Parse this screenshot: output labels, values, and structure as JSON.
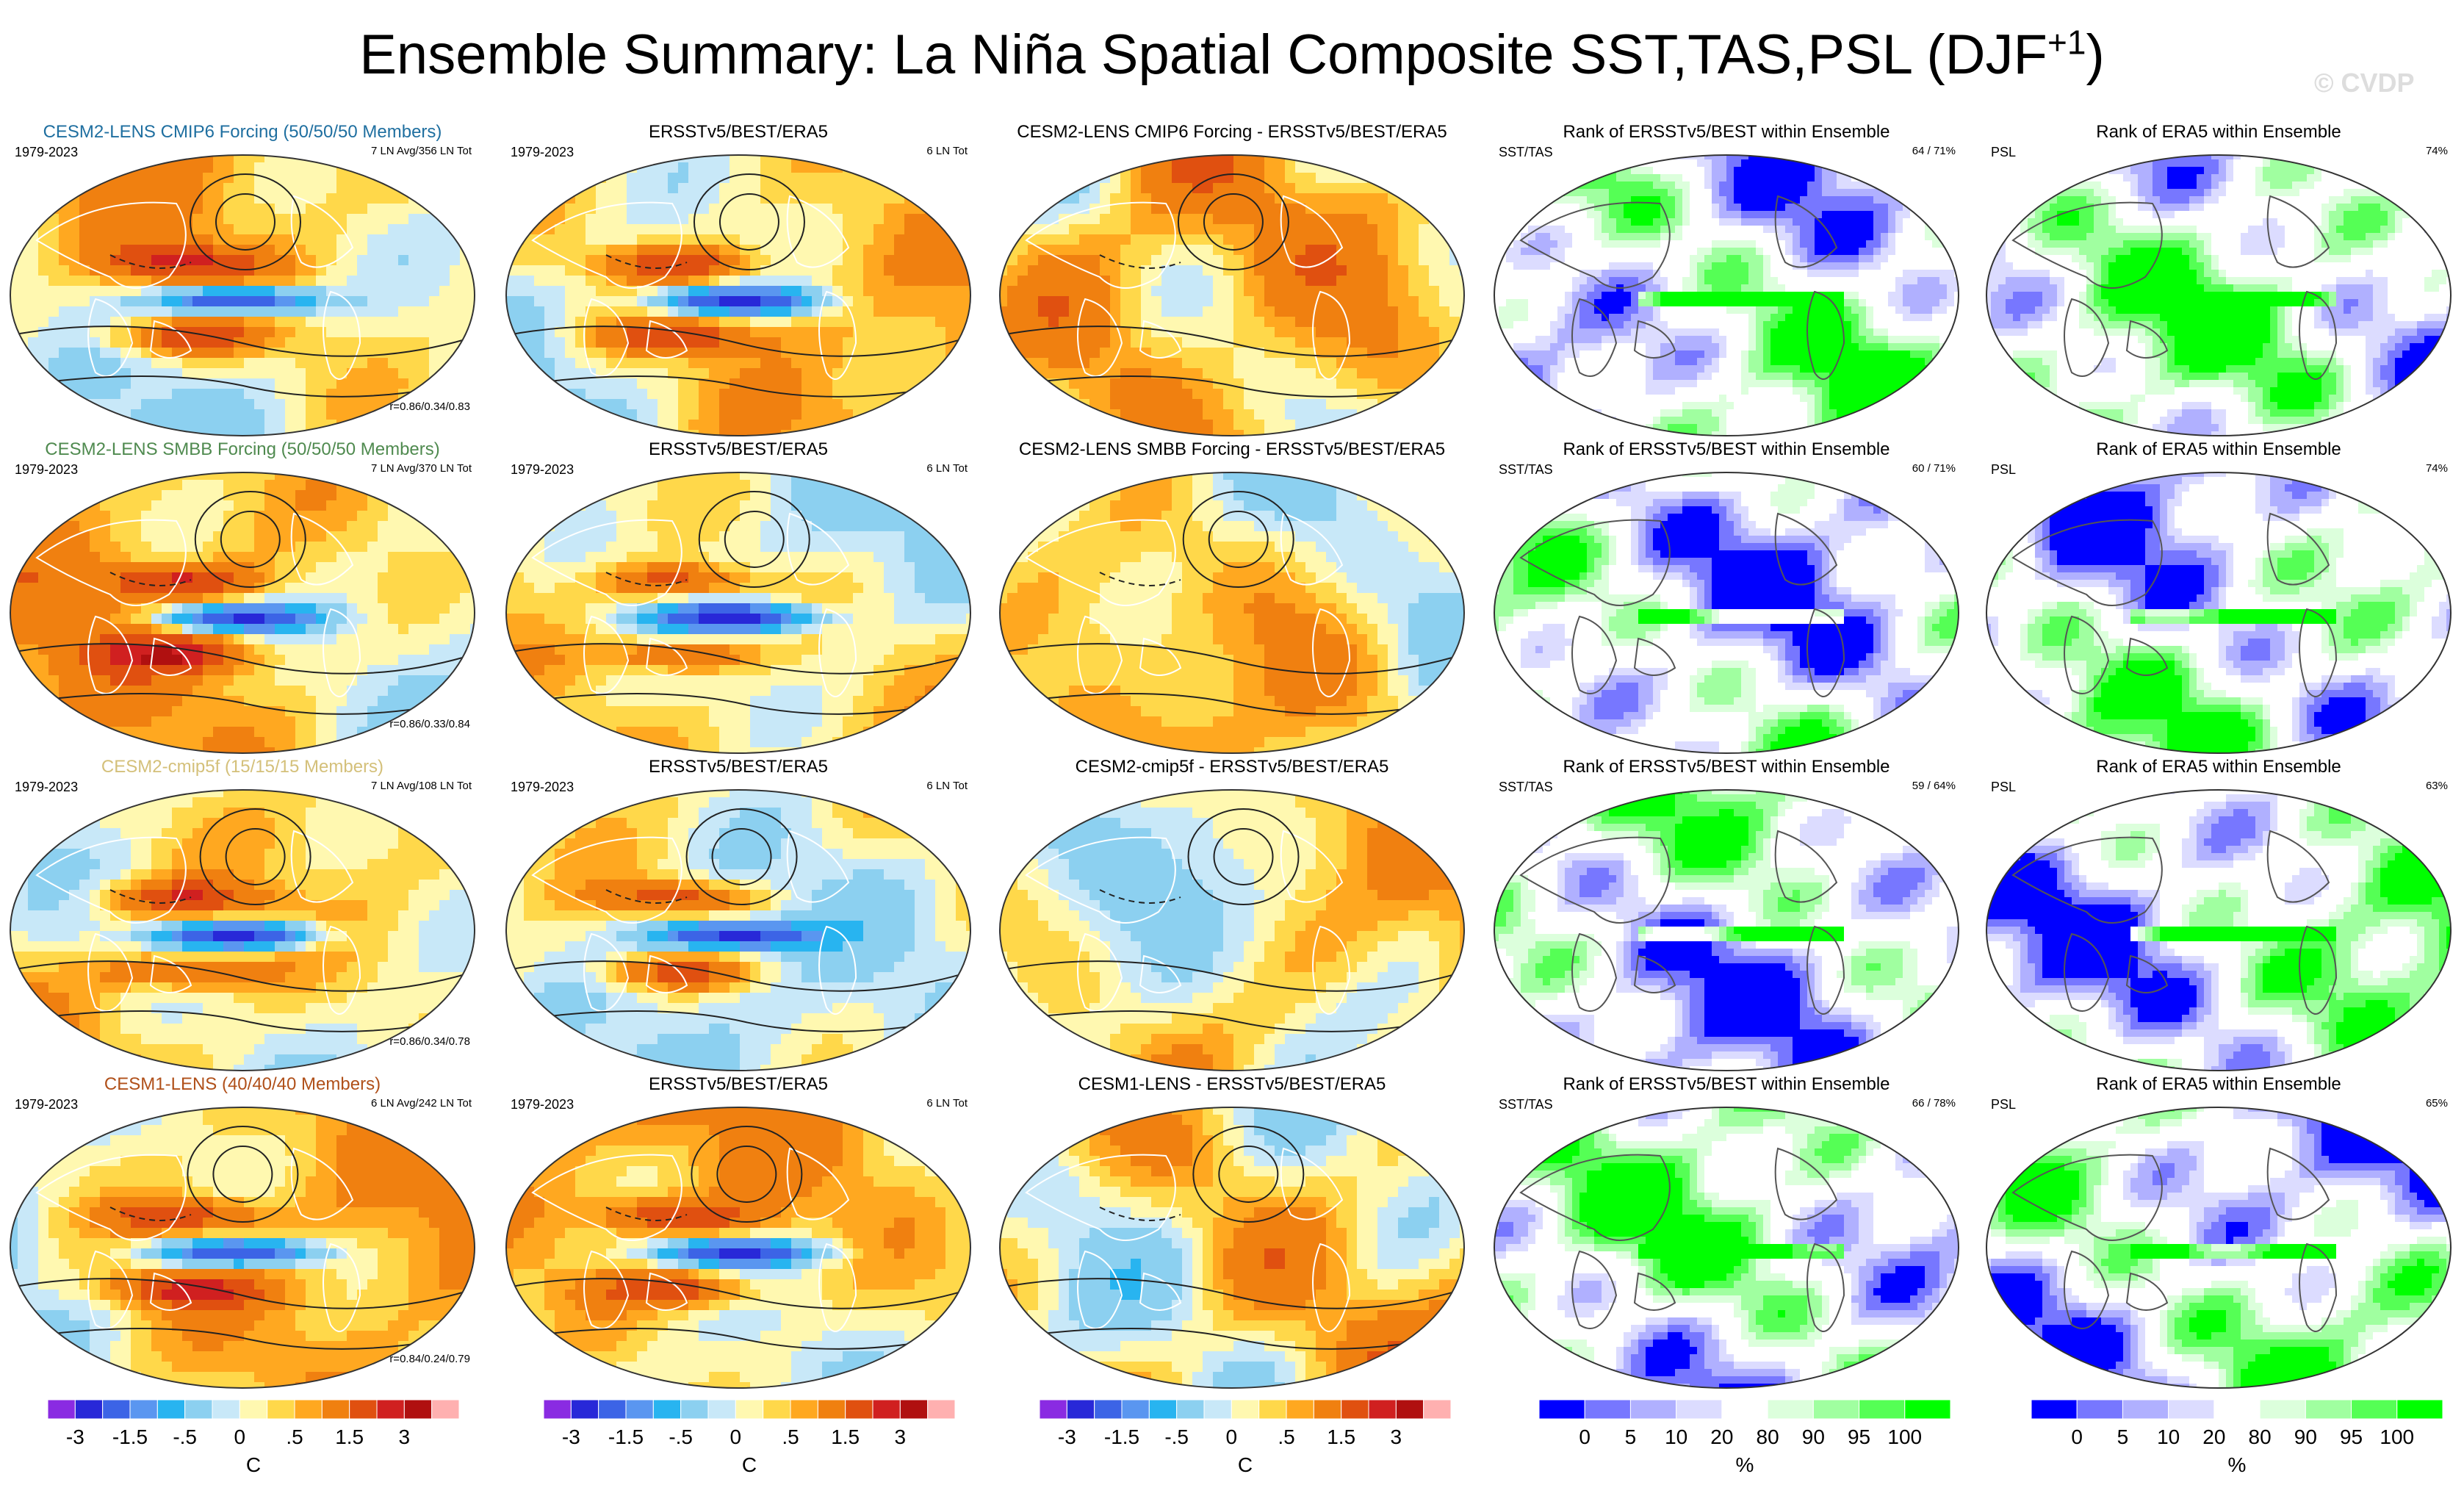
{
  "title": {
    "text": "Ensemble Summary: La Niña Spatial Composite SST,TAS,PSL (DJF",
    "superscript": "+1",
    "close": ")",
    "watermark": "© CVDP"
  },
  "colors": {
    "sst_scale": [
      "#8a2be2",
      "#2828d8",
      "#3c64e6",
      "#5a96f0",
      "#28b4f0",
      "#8cd0f0",
      "#c8e8f8",
      "#fff8b0",
      "#ffd84a",
      "#ffa820",
      "#f08010",
      "#e05010",
      "#d02020",
      "#b01010",
      "#ffb0b0"
    ],
    "rank_scale": [
      "#0000ff",
      "#7777ff",
      "#b0b0ff",
      "#dcdcff",
      "#ffffff",
      "#ffffff",
      "#dcffdc",
      "#a0ffa0",
      "#55ff55",
      "#00ff00"
    ]
  },
  "chart_data": [
    {
      "type": "heatmap",
      "row": 1,
      "title": "CESM2-LENS CMIP6 Forcing (50/50/50 Members)",
      "title_color": "#1f6fa0",
      "left_text": "1979-2023",
      "right_text": "7 LN Avg/356 LN Tot",
      "bottom_text": "r=0.86/0.34/0.83",
      "colorbar": {
        "ticks": [
          "-3",
          "-1.5",
          "-.5",
          "0",
          ".5",
          "1.5",
          "3"
        ],
        "label": "C"
      }
    },
    {
      "type": "heatmap",
      "row": 1,
      "title": "ERSSTv5/BEST/ERA5",
      "left_text": "1979-2023",
      "right_text": "6 LN Tot",
      "colorbar": {
        "ticks": [
          "-3",
          "-1.5",
          "-.5",
          "0",
          ".5",
          "1.5",
          "3"
        ],
        "label": "C"
      }
    },
    {
      "type": "heatmap",
      "row": 1,
      "title": "CESM2-LENS CMIP6 Forcing - ERSSTv5/BEST/ERA5",
      "colorbar": {
        "ticks": [
          "-3",
          "-1.5",
          "-.5",
          "0",
          ".5",
          "1.5",
          "3"
        ],
        "label": "C"
      }
    },
    {
      "type": "heatmap",
      "row": 1,
      "title": "Rank of ERSSTv5/BEST within Ensemble",
      "left_text": "SST/TAS",
      "right_text": "64 /  71%",
      "colorbar": {
        "ticks": [
          "0",
          "5",
          "10",
          "20",
          "80",
          "90",
          "95",
          "100"
        ],
        "label": "%"
      }
    },
    {
      "type": "heatmap",
      "row": 1,
      "title": "Rank of ERA5 within Ensemble",
      "left_text": "PSL",
      "right_text": "74%",
      "colorbar": {
        "ticks": [
          "0",
          "5",
          "10",
          "20",
          "80",
          "90",
          "95",
          "100"
        ],
        "label": "%"
      }
    },
    {
      "type": "heatmap",
      "row": 2,
      "title": "CESM2-LENS SMBB Forcing (50/50/50 Members)",
      "title_color": "#4f8a4f",
      "left_text": "1979-2023",
      "right_text": "7 LN Avg/370 LN Tot",
      "bottom_text": "r=0.86/0.33/0.84"
    },
    {
      "type": "heatmap",
      "row": 2,
      "title": "ERSSTv5/BEST/ERA5",
      "left_text": "1979-2023",
      "right_text": "6 LN Tot"
    },
    {
      "type": "heatmap",
      "row": 2,
      "title": "CESM2-LENS SMBB Forcing - ERSSTv5/BEST/ERA5"
    },
    {
      "type": "heatmap",
      "row": 2,
      "title": "Rank of ERSSTv5/BEST within Ensemble",
      "left_text": "SST/TAS",
      "right_text": "60 /  71%"
    },
    {
      "type": "heatmap",
      "row": 2,
      "title": "Rank of ERA5 within Ensemble",
      "left_text": "PSL",
      "right_text": "74%"
    },
    {
      "type": "heatmap",
      "row": 3,
      "title": "CESM2-cmip5f (15/15/15 Members)",
      "title_color": "#d4c07a",
      "left_text": "1979-2023",
      "right_text": "7 LN Avg/108 LN Tot",
      "bottom_text": "r=0.86/0.34/0.78"
    },
    {
      "type": "heatmap",
      "row": 3,
      "title": "ERSSTv5/BEST/ERA5",
      "left_text": "1979-2023",
      "right_text": "6 LN Tot"
    },
    {
      "type": "heatmap",
      "row": 3,
      "title": "CESM2-cmip5f - ERSSTv5/BEST/ERA5"
    },
    {
      "type": "heatmap",
      "row": 3,
      "title": "Rank of ERSSTv5/BEST within Ensemble",
      "left_text": "SST/TAS",
      "right_text": "59 /  64%"
    },
    {
      "type": "heatmap",
      "row": 3,
      "title": "Rank of ERA5 within Ensemble",
      "left_text": "PSL",
      "right_text": "63%"
    },
    {
      "type": "heatmap",
      "row": 4,
      "title": "CESM1-LENS (40/40/40 Members)",
      "title_color": "#b0501a",
      "left_text": "1979-2023",
      "right_text": "6 LN Avg/242 LN Tot",
      "bottom_text": "r=0.84/0.24/0.79"
    },
    {
      "type": "heatmap",
      "row": 4,
      "title": "ERSSTv5/BEST/ERA5",
      "left_text": "1979-2023",
      "right_text": "6 LN Tot"
    },
    {
      "type": "heatmap",
      "row": 4,
      "title": "CESM1-LENS - ERSSTv5/BEST/ERA5"
    },
    {
      "type": "heatmap",
      "row": 4,
      "title": "Rank of ERSSTv5/BEST within Ensemble",
      "left_text": "SST/TAS",
      "right_text": "66 /  78%"
    },
    {
      "type": "heatmap",
      "row": 4,
      "title": "Rank of ERA5 within Ensemble",
      "left_text": "PSL",
      "right_text": "65%"
    }
  ]
}
